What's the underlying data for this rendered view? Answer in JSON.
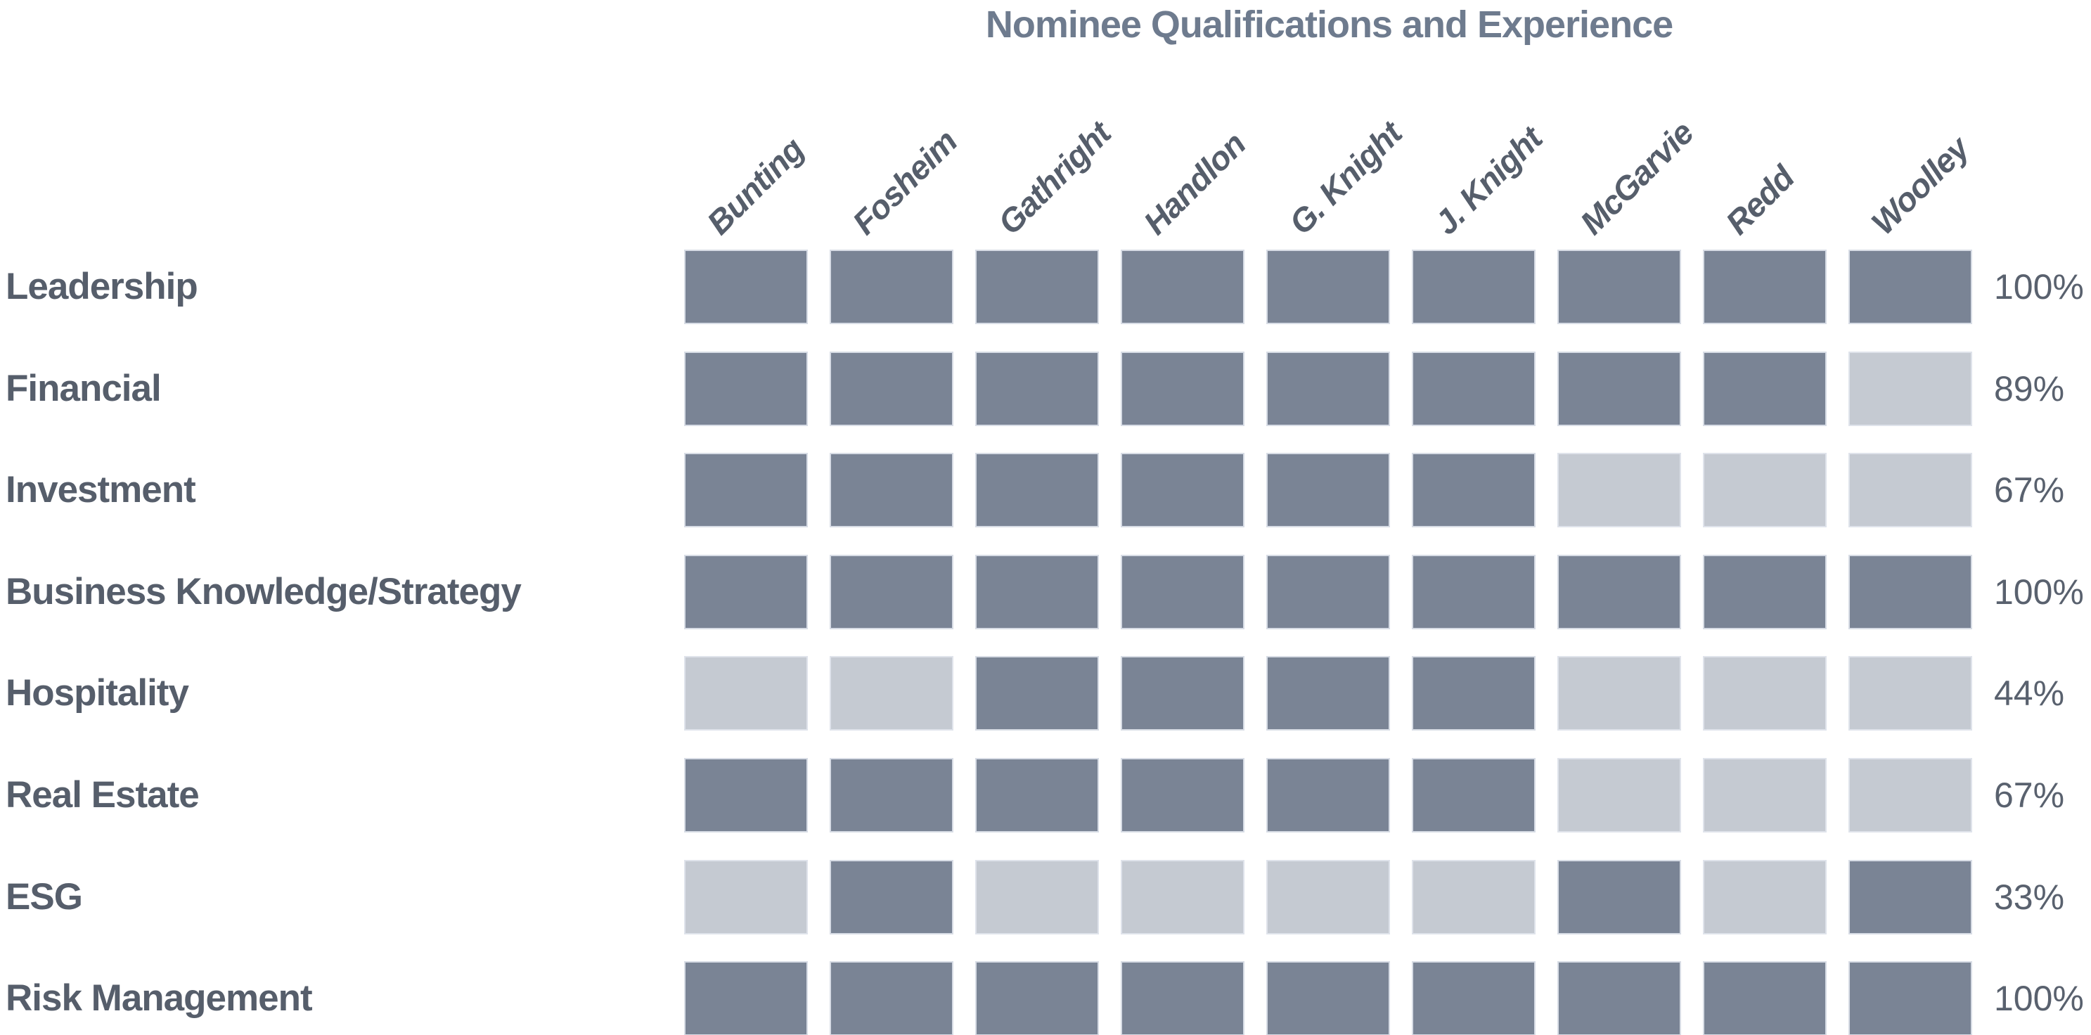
{
  "chart_data": {
    "type": "heatmap",
    "title": "Nominee Qualifications and Experience",
    "columns": [
      "Bunting",
      "Fosheim",
      "Gathright",
      "Handlon",
      "G. Knight",
      "J. Knight",
      "McGarvie",
      "Redd",
      "Woolley"
    ],
    "rows": [
      {
        "label": "Leadership",
        "values": [
          1,
          1,
          1,
          1,
          1,
          1,
          1,
          1,
          1
        ],
        "percent": "100%"
      },
      {
        "label": "Financial",
        "values": [
          1,
          1,
          1,
          1,
          1,
          1,
          1,
          1,
          0
        ],
        "percent": "89%"
      },
      {
        "label": "Investment",
        "values": [
          1,
          1,
          1,
          1,
          1,
          1,
          0,
          0,
          0
        ],
        "percent": "67%"
      },
      {
        "label": "Business Knowledge/Strategy",
        "values": [
          1,
          1,
          1,
          1,
          1,
          1,
          1,
          1,
          1
        ],
        "percent": "100%"
      },
      {
        "label": "Hospitality",
        "values": [
          0,
          0,
          1,
          1,
          1,
          1,
          0,
          0,
          0
        ],
        "percent": "44%"
      },
      {
        "label": "Real Estate",
        "values": [
          1,
          1,
          1,
          1,
          1,
          1,
          0,
          0,
          0
        ],
        "percent": "67%"
      },
      {
        "label": "ESG",
        "values": [
          0,
          1,
          0,
          0,
          0,
          0,
          1,
          0,
          1
        ],
        "percent": "33%"
      },
      {
        "label": "Risk Management",
        "values": [
          1,
          1,
          1,
          1,
          1,
          1,
          1,
          1,
          1
        ],
        "percent": "100%"
      }
    ],
    "colors": {
      "qualified": "#7A8495",
      "not_qualified": "#C5CAD2",
      "title_text": "#6E7B8E",
      "label_text": "#565E6B",
      "percent_text": "#59616E"
    },
    "layout_hints": {
      "grid": "off",
      "row_summary_position": "right",
      "column_header_rotation_deg": -45
    }
  }
}
